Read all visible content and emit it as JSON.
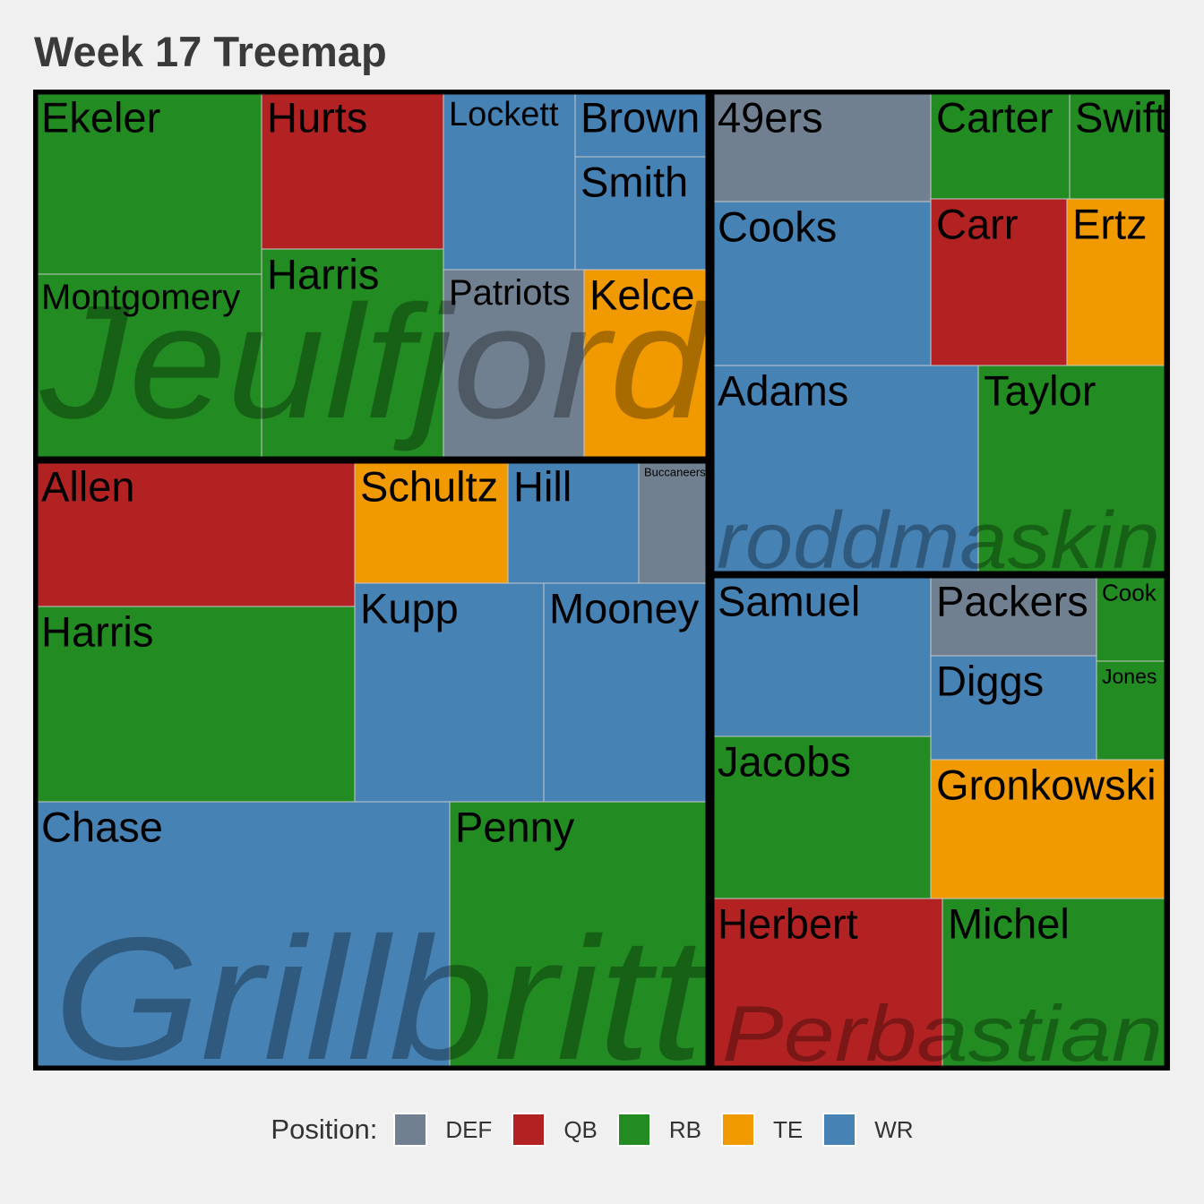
{
  "title": "Week 17 Treemap",
  "chart_data": {
    "type": "treemap",
    "title": "Week 17 Treemap",
    "legend": {
      "title": "Position:",
      "placement": "bottom",
      "items": [
        {
          "label": "DEF",
          "color": "#708090"
        },
        {
          "label": "QB",
          "color": "#b22222"
        },
        {
          "label": "RB",
          "color": "#228b22"
        },
        {
          "label": "TE",
          "color": "#f09a00"
        },
        {
          "label": "WR",
          "color": "#4682b4"
        }
      ]
    },
    "colors": {
      "DEF": "#708090",
      "QB": "#b22222",
      "RB": "#228b22",
      "TE": "#f09a00",
      "WR": "#4682b4"
    },
    "groups": [
      {
        "name": "Jeulfjord",
        "players": [
          {
            "name": "Ekeler",
            "position": "RB"
          },
          {
            "name": "Montgomery",
            "position": "RB"
          },
          {
            "name": "Hurts",
            "position": "QB"
          },
          {
            "name": "Harris",
            "position": "RB"
          },
          {
            "name": "Lockett",
            "position": "WR"
          },
          {
            "name": "Brown",
            "position": "WR"
          },
          {
            "name": "Smith",
            "position": "WR"
          },
          {
            "name": "Patriots",
            "position": "DEF"
          },
          {
            "name": "Kelce",
            "position": "TE"
          }
        ]
      },
      {
        "name": "Grillbritt",
        "players": [
          {
            "name": "Allen",
            "position": "QB"
          },
          {
            "name": "Harris",
            "position": "RB"
          },
          {
            "name": "Schultz",
            "position": "TE"
          },
          {
            "name": "Hill",
            "position": "WR"
          },
          {
            "name": "Buccaneers",
            "position": "DEF"
          },
          {
            "name": "Kupp",
            "position": "WR"
          },
          {
            "name": "Mooney",
            "position": "WR"
          },
          {
            "name": "Chase",
            "position": "WR"
          },
          {
            "name": "Penny",
            "position": "RB"
          }
        ]
      },
      {
        "name": "roddmaskin",
        "players": [
          {
            "name": "49ers",
            "position": "DEF"
          },
          {
            "name": "Cooks",
            "position": "WR"
          },
          {
            "name": "Carter",
            "position": "RB"
          },
          {
            "name": "Swift",
            "position": "RB"
          },
          {
            "name": "Carr",
            "position": "QB"
          },
          {
            "name": "Ertz",
            "position": "TE"
          },
          {
            "name": "Adams",
            "position": "WR"
          },
          {
            "name": "Taylor",
            "position": "RB"
          }
        ]
      },
      {
        "name": "Perbastian",
        "players": [
          {
            "name": "Samuel",
            "position": "WR"
          },
          {
            "name": "Packers",
            "position": "DEF"
          },
          {
            "name": "Cook",
            "position": "RB"
          },
          {
            "name": "Diggs",
            "position": "WR"
          },
          {
            "name": "Jones",
            "position": "RB"
          },
          {
            "name": "Jacobs",
            "position": "RB"
          },
          {
            "name": "Gronkowski",
            "position": "TE"
          },
          {
            "name": "Herbert",
            "position": "QB"
          },
          {
            "name": "Michel",
            "position": "RB"
          }
        ]
      }
    ]
  }
}
